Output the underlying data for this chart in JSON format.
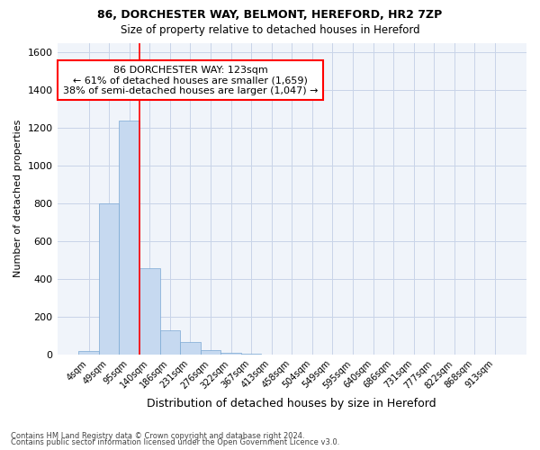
{
  "title1": "86, DORCHESTER WAY, BELMONT, HEREFORD, HR2 7ZP",
  "title2": "Size of property relative to detached houses in Hereford",
  "xlabel": "Distribution of detached houses by size in Hereford",
  "ylabel": "Number of detached properties",
  "bar_labels": [
    "4sqm",
    "49sqm",
    "95sqm",
    "140sqm",
    "186sqm",
    "231sqm",
    "276sqm",
    "322sqm",
    "367sqm",
    "413sqm",
    "458sqm",
    "504sqm",
    "549sqm",
    "595sqm",
    "640sqm",
    "686sqm",
    "731sqm",
    "777sqm",
    "822sqm",
    "868sqm",
    "913sqm"
  ],
  "bar_values": [
    20,
    800,
    1240,
    455,
    130,
    65,
    25,
    10,
    5,
    0,
    0,
    0,
    0,
    0,
    0,
    0,
    0,
    0,
    0,
    0,
    0
  ],
  "bar_color": "#c6d9f0",
  "bar_edge_color": "#7aa8d4",
  "red_line_x": 2.5,
  "annotation_line1": "86 DORCHESTER WAY: 123sqm",
  "annotation_line2": "← 61% of detached houses are smaller (1,659)",
  "annotation_line3": "38% of semi-detached houses are larger (1,047) →",
  "ylim": [
    0,
    1650
  ],
  "yticks": [
    0,
    200,
    400,
    600,
    800,
    1000,
    1200,
    1400,
    1600
  ],
  "background_color": "#ffffff",
  "plot_bg_color": "#f0f4fa",
  "grid_color": "#c8d4e8",
  "footer1": "Contains HM Land Registry data © Crown copyright and database right 2024.",
  "footer2": "Contains public sector information licensed under the Open Government Licence v3.0."
}
